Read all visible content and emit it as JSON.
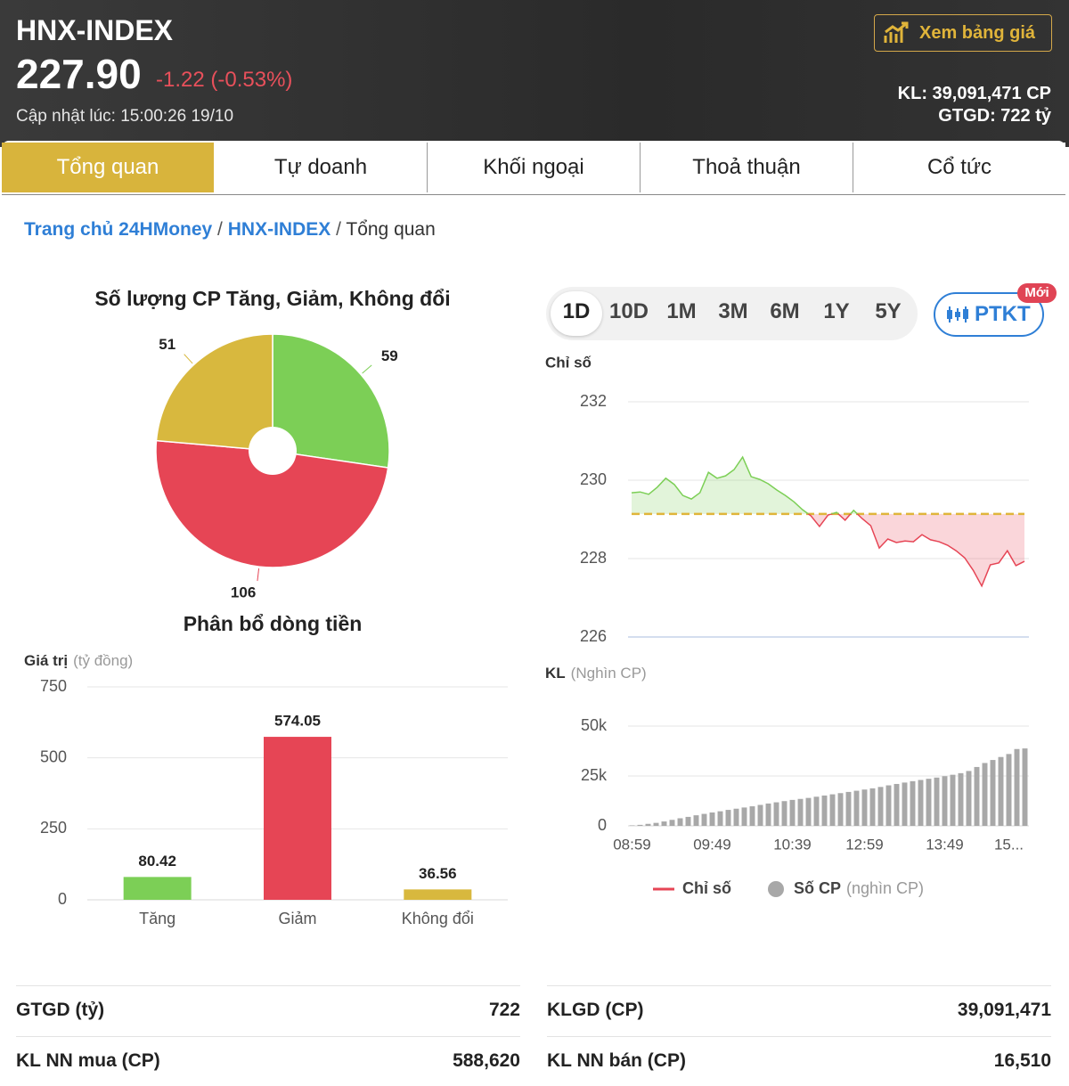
{
  "header": {
    "title": "HNX-INDEX",
    "price": "227.90",
    "change": "-1.22 (-0.53%)",
    "updated": "Cập nhật lúc: 15:00:26 19/10",
    "button": "Xem bảng giá",
    "volume": "KL: 39,091,471 CP",
    "value": "GTGD: 722 tỷ"
  },
  "tabs": [
    "Tổng quan",
    "Tự doanh",
    "Khối ngoại",
    "Thoả thuận",
    "Cổ tức"
  ],
  "breadcrumb": [
    "Trang chủ 24HMoney",
    "HNX-INDEX",
    "Tổng quan"
  ],
  "periods": [
    "1D",
    "10D",
    "1M",
    "3M",
    "6M",
    "1Y",
    "5Y"
  ],
  "ptkt": "PTKT",
  "badge": "Mới",
  "stats": [
    {
      "label": "GTGD (tỷ)",
      "value": "722"
    },
    {
      "label": "KLGD (CP)",
      "value": "39,091,471"
    },
    {
      "label": "KL NN mua (CP)",
      "value": "588,620"
    },
    {
      "label": "KL NN bán (CP)",
      "value": "16,510"
    }
  ],
  "chart_data": [
    {
      "type": "pie",
      "title": "Số lượng CP Tăng, Giảm, Không đổi",
      "values": [
        59,
        106,
        51
      ],
      "colors": [
        "#7ccf56",
        "#e64555",
        "#d8b83e"
      ]
    },
    {
      "type": "bar",
      "title": "Phân bổ dòng tiền",
      "ylabel": "Giá trị",
      "ylabel_note": "(tỷ đồng)",
      "categories": [
        "Tăng",
        "Giảm",
        "Không đổi"
      ],
      "values": [
        80.42,
        574.05,
        36.56
      ],
      "colors": [
        "#7ccf56",
        "#e64555",
        "#d8b83e"
      ],
      "ylim": [
        0,
        750
      ],
      "yticks": [
        0,
        250,
        500,
        750
      ],
      "grid": true
    },
    {
      "type": "line",
      "ylabel": "Chỉ số",
      "ylim": [
        226,
        232
      ],
      "yticks": [
        226,
        228,
        230,
        232
      ],
      "grid": true,
      "reference": 229.14,
      "reference_color": "#e0b53a",
      "series": [
        {
          "name": "Chỉ số",
          "color": "#e64555",
          "up_color": "#7ccf56",
          "values": [
            229.68,
            229.7,
            229.64,
            229.82,
            230.05,
            229.89,
            229.61,
            229.52,
            229.68,
            230.2,
            230.05,
            230.11,
            230.27,
            230.59,
            230.09,
            230.02,
            229.91,
            229.75,
            229.61,
            229.45,
            229.25,
            229.09,
            228.82,
            229.11,
            229.18,
            228.98,
            229.23,
            229.02,
            228.84,
            228.27,
            228.5,
            228.41,
            228.45,
            228.43,
            228.61,
            228.48,
            228.43,
            228.34,
            228.2,
            228.02,
            227.7,
            227.3,
            227.84,
            227.89,
            228.2,
            227.82,
            227.93
          ]
        }
      ]
    },
    {
      "type": "bar",
      "ylabel": "KL",
      "ylabel_note": "(Nghìn CP)",
      "legend_note": "(nghìn CP)",
      "ylim": [
        0,
        50000
      ],
      "yticks": [
        0,
        {
          "value": 25000,
          "label": "25k"
        },
        {
          "value": 50000,
          "label": "50k"
        }
      ],
      "grid": true,
      "categories": [
        "08:59",
        null,
        null,
        null,
        null,
        null,
        null,
        null,
        null,
        null,
        "09:49",
        null,
        null,
        null,
        null,
        null,
        null,
        null,
        null,
        null,
        "10:39",
        null,
        null,
        null,
        null,
        null,
        null,
        null,
        null,
        "12:59",
        null,
        null,
        null,
        null,
        null,
        null,
        null,
        null,
        null,
        "13:49",
        null,
        null,
        null,
        null,
        null,
        null,
        null,
        "15...",
        null,
        null
      ],
      "series": [
        {
          "name": "Số CP",
          "color": "#a8a8a8",
          "values": [
            200,
            500,
            1000,
            1500,
            2200,
            3000,
            3800,
            4500,
            5300,
            6000,
            6700,
            7300,
            8000,
            8600,
            9200,
            9800,
            10500,
            11200,
            11800,
            12400,
            13000,
            13500,
            14000,
            14600,
            15200,
            15800,
            16400,
            17000,
            17600,
            18200,
            18800,
            19500,
            20300,
            21000,
            21700,
            22400,
            23000,
            23600,
            24200,
            24900,
            25600,
            26400,
            27500,
            29500,
            31500,
            33000,
            34500,
            36000,
            38500,
            38800
          ]
        }
      ]
    }
  ]
}
